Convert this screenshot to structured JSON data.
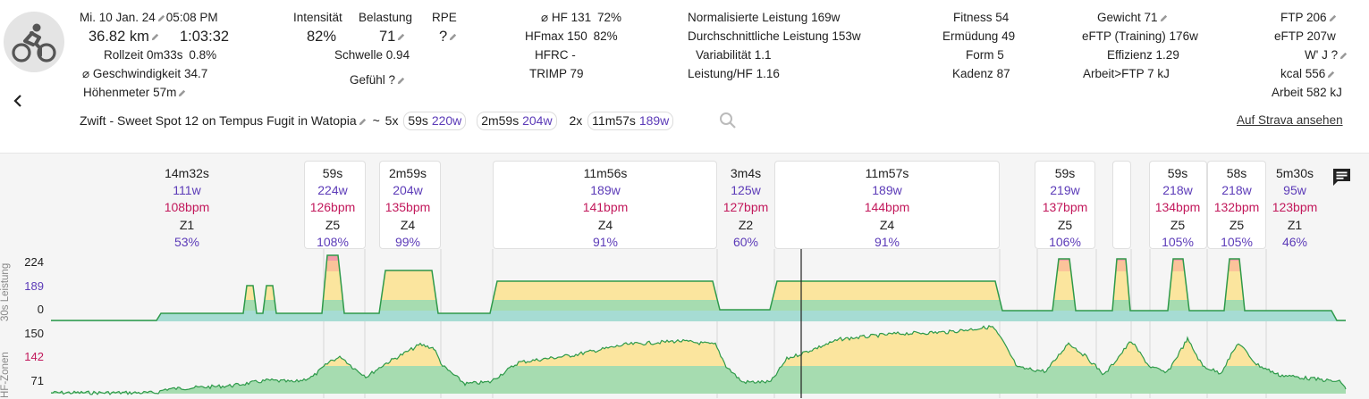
{
  "header": {
    "date": "Mi. 10 Jan. 24",
    "time": "05:08 PM",
    "distance": "36.82 km",
    "duration": "1:03:32",
    "rollzeit_label": "Rollzeit",
    "rollzeit_value": "0m33s",
    "rollzeit_pct": "0.8%",
    "speed_label": "⌀ Geschwindigkeit",
    "speed_value": "34.7",
    "elev_label": "Höhenmeter",
    "elev_value": "57m"
  },
  "intensity": {
    "intensitaet_label": "Intensität",
    "intensitaet_value": "82%",
    "belastung_label": "Belastung",
    "belastung_value": "71",
    "rpe_label": "RPE",
    "rpe_value": "?",
    "schwelle_label": "Schwelle",
    "schwelle_value": "0.94",
    "gefuehl_label": "Gefühl",
    "gefuehl_value": "?"
  },
  "hr": {
    "hf_label": "⌀ HF",
    "hf_value": "131",
    "hf_pct": "72%",
    "hfmax_label": "HFmax",
    "hfmax_value": "150",
    "hfmax_pct": "82%",
    "hfrc_label": "HFRC",
    "hfrc_value": "-",
    "trimp_label": "TRIMP",
    "trimp_value": "79"
  },
  "power": {
    "np_label": "Normalisierte Leistung",
    "np_value": "169w",
    "avg_label": "Durchschnittliche Leistung",
    "avg_value": "153w",
    "var_label": "Variabilität",
    "var_value": "1.1",
    "lhf_label": "Leistung/HF",
    "lhf_value": "1.16"
  },
  "fitness": {
    "fitness_label": "Fitness",
    "fitness_value": "54",
    "erm_label": "Ermüdung",
    "erm_value": "49",
    "form_label": "Form",
    "form_value": "5",
    "kad_label": "Kadenz",
    "kad_value": "87"
  },
  "weight": {
    "gew_label": "Gewicht",
    "gew_value": "71",
    "eftp_tr_label": "eFTP (Training)",
    "eftp_tr_value": "176w",
    "eff_label": "Effizienz",
    "eff_value": "1.29",
    "arbeit_ftp_label": "Arbeit>FTP",
    "arbeit_ftp_value": "7 kJ"
  },
  "ftp": {
    "ftp_label": "FTP",
    "ftp_value": "206",
    "eftp_label": "eFTP",
    "eftp_value": "207w",
    "wj_label": "W' J",
    "wj_value": "?",
    "kcal_label": "kcal",
    "kcal_value": "556",
    "arbeit_label": "Arbeit",
    "arbeit_value": "582 kJ"
  },
  "workout": {
    "name": "Zwift - Sweet Spot 12 on Tempus Fugit in Watopia",
    "tilde": "~",
    "g1_count": "5x",
    "g1_dur": "59s",
    "g1_w": "220w",
    "g2_dur": "2m59s",
    "g2_w": "204w",
    "g3_count": "2x",
    "g3_dur": "11m57s",
    "g3_w": "189w",
    "strava_link": "Auf Strava ansehen"
  },
  "intervals": [
    {
      "dur": "14m32s",
      "w": "111w",
      "bpm": "108bpm",
      "zone": "Z1",
      "pct": "53%"
    },
    {
      "dur": "59s",
      "w": "224w",
      "bpm": "126bpm",
      "zone": "Z5",
      "pct": "108%"
    },
    {
      "dur": "2m59s",
      "w": "204w",
      "bpm": "135bpm",
      "zone": "Z4",
      "pct": "99%"
    },
    {
      "dur": "11m56s",
      "w": "189w",
      "bpm": "141bpm",
      "zone": "Z4",
      "pct": "91%"
    },
    {
      "dur": "3m4s",
      "w": "125w",
      "bpm": "127bpm",
      "zone": "Z2",
      "pct": "60%"
    },
    {
      "dur": "11m57s",
      "w": "189w",
      "bpm": "144bpm",
      "zone": "Z4",
      "pct": "91%"
    },
    {
      "dur": "59s",
      "w": "219w",
      "bpm": "137bpm",
      "zone": "Z5",
      "pct": "106%"
    },
    {
      "dur": "59s",
      "w": "218w",
      "bpm": "134bpm",
      "zone": "Z5",
      "pct": "105%"
    },
    {
      "dur": "58s",
      "w": "218w",
      "bpm": "132bpm",
      "zone": "Z5",
      "pct": "105%"
    },
    {
      "dur": "5m30s",
      "w": "95w",
      "bpm": "123bpm",
      "zone": "Z1",
      "pct": "46%"
    }
  ],
  "chart": {
    "power_axis_label": "30s Leistung",
    "hr_axis_label": "HF-Zonen",
    "power_ticks": [
      "224",
      "189",
      "0"
    ],
    "hr_ticks": [
      "150",
      "142",
      "71"
    ]
  },
  "colors": {
    "accent": "#5c3bb8",
    "bpm": "#c2185b",
    "zone_green": "#a6dcb0",
    "zone_yellow": "#fbe59e",
    "zone_orange": "#fbc39a",
    "zone_red": "#f49aa8",
    "zone_teal": "#a6dcd3"
  }
}
